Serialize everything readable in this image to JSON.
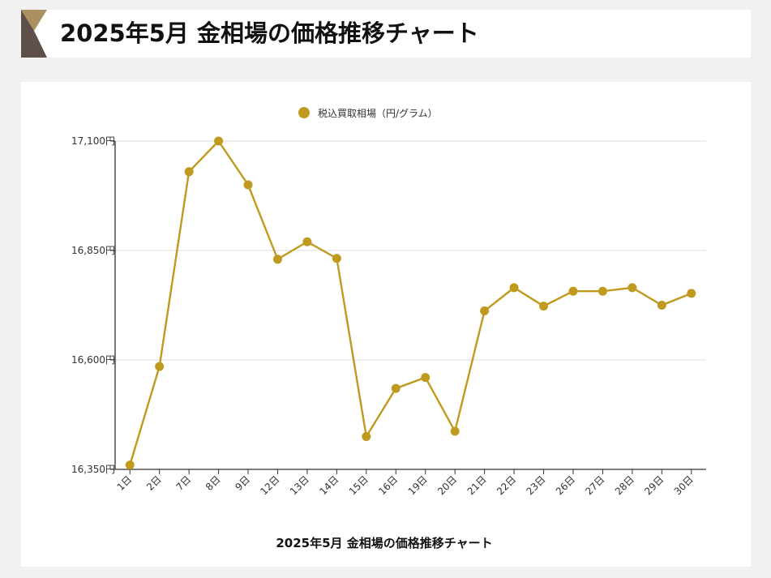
{
  "page": {
    "title": "2025年5月 金相場の価格推移チャート"
  },
  "colors": {
    "accent": "#bf9a1f",
    "logo_gold": "#ab9162",
    "logo_dark": "#5e4f4b",
    "grid": "#dddddd",
    "axis": "#333333"
  },
  "chart_data": {
    "type": "line",
    "title": "2025年5月 金相場の価格推移チャート",
    "legend_position": "top",
    "grid": true,
    "y_unit": "円",
    "categories": [
      "1日",
      "2日",
      "7日",
      "8日",
      "9日",
      "12日",
      "13日",
      "14日",
      "15日",
      "16日",
      "19日",
      "20日",
      "21日",
      "22日",
      "23日",
      "26日",
      "27日",
      "28日",
      "29日",
      "30日"
    ],
    "series": [
      {
        "name": "税込買取相場（円/グラム）",
        "values": [
          16360,
          16585,
          17030,
          17100,
          17000,
          16830,
          16870,
          16832,
          16425,
          16535,
          16560,
          16437,
          16712,
          16765,
          16723,
          16757,
          16757,
          16765,
          16725,
          16752
        ]
      }
    ],
    "yticks": [
      16350,
      16600,
      16850,
      17100
    ],
    "ytick_labels": [
      "16,350円",
      "16,600円",
      "16,850円",
      "17,100円"
    ],
    "ylim": [
      16350,
      17100
    ]
  }
}
